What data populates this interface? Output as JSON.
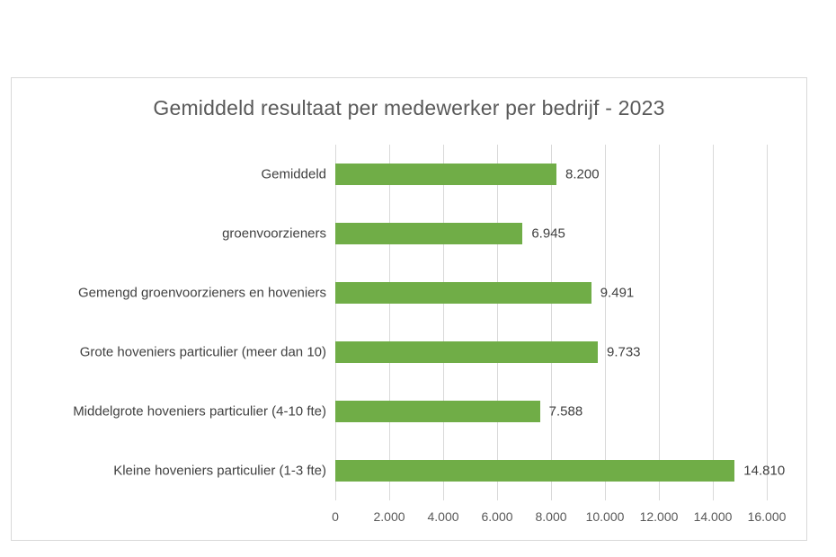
{
  "chart_data": {
    "type": "bar",
    "orientation": "horizontal",
    "title": "Gemiddeld resultaat per medewerker per bedrijf - 2023",
    "categories": [
      "Gemiddeld",
      "groenvoorzieners",
      "Gemengd groenvoorzieners en hoveniers",
      "Grote hoveniers particulier (meer dan 10)",
      "Middelgrote hoveniers particulier (4-10 fte)",
      "Kleine hoveniers particulier (1-3 fte)"
    ],
    "values": [
      8200,
      6945,
      9491,
      9733,
      7588,
      14810
    ],
    "value_labels": [
      "8.200",
      "6.945",
      "9.491",
      "9.733",
      "7.588",
      "14.810"
    ],
    "xlabel": "",
    "ylabel": "",
    "xlim": [
      0,
      16000
    ],
    "x_ticks": [
      0,
      2000,
      4000,
      6000,
      8000,
      10000,
      12000,
      14000,
      16000
    ],
    "x_tick_labels": [
      "0",
      "2.000",
      "4.000",
      "6.000",
      "8.000",
      "10.000",
      "12.000",
      "14.000",
      "16.000"
    ],
    "grid": true,
    "legend": "none",
    "bar_color": "#70AD47",
    "title_color": "#595959",
    "label_color": "#404040",
    "tick_color": "#595959",
    "grid_color": "#D9D9D9",
    "border_color": "#D9D9D9"
  }
}
